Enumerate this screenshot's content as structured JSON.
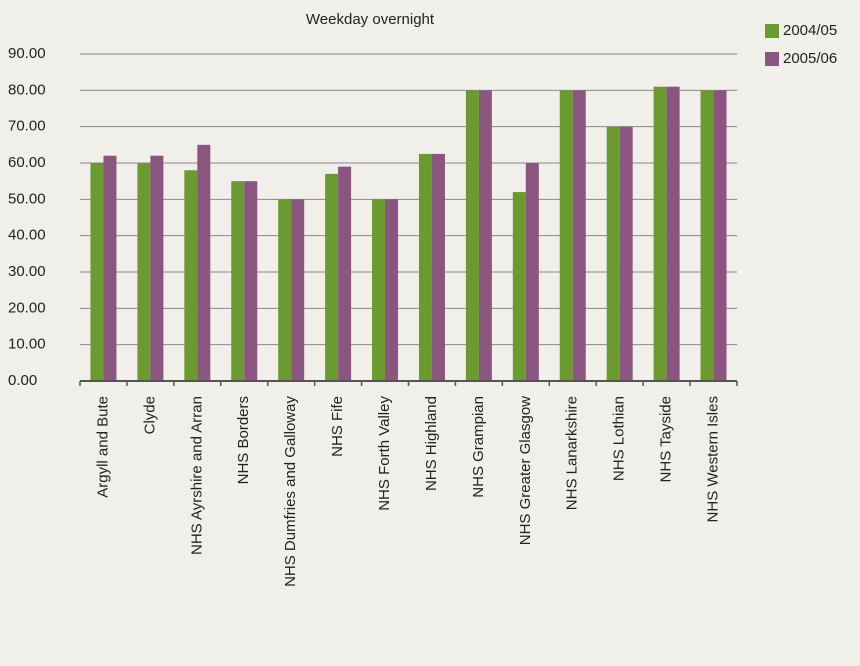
{
  "chart_data": {
    "type": "bar",
    "title": "Weekday overnight",
    "categories": [
      "Argyll and Bute",
      "Clyde",
      "NHS Ayrshire and Arran",
      "NHS Borders",
      "NHS Dumfries and Galloway",
      "NHS Fife",
      "NHS Forth Valley",
      "NHS Highland",
      "NHS Grampian",
      "NHS Greater Glasgow",
      "NHS Lanarkshire",
      "NHS Lothian",
      "NHS Tayside",
      "NHS Western Isles"
    ],
    "series": [
      {
        "name": "2004/05",
        "color": "#6b9a2f",
        "values": [
          60,
          60,
          58,
          55,
          50,
          57,
          50,
          62.5,
          80,
          52,
          80,
          70,
          81,
          80
        ]
      },
      {
        "name": "2005/06",
        "color": "#8a5680",
        "values": [
          62,
          62,
          65,
          55,
          50,
          59,
          50,
          62.5,
          80,
          60,
          80,
          70,
          81,
          80
        ]
      }
    ],
    "ylim": [
      0,
      90
    ],
    "yticks": [
      {
        "value": 0,
        "label": "0.00"
      },
      {
        "value": 10,
        "label": "10.00"
      },
      {
        "value": 20,
        "label": "20.00"
      },
      {
        "value": 30,
        "label": "30.00"
      },
      {
        "value": 40,
        "label": "40.00"
      },
      {
        "value": 50,
        "label": "50.00"
      },
      {
        "value": 60,
        "label": "60.00"
      },
      {
        "value": 70,
        "label": "70.00"
      },
      {
        "value": 80,
        "label": "80.00"
      },
      {
        "value": 90,
        "label": "90.00"
      }
    ],
    "grid": true,
    "legend": "top-right"
  }
}
